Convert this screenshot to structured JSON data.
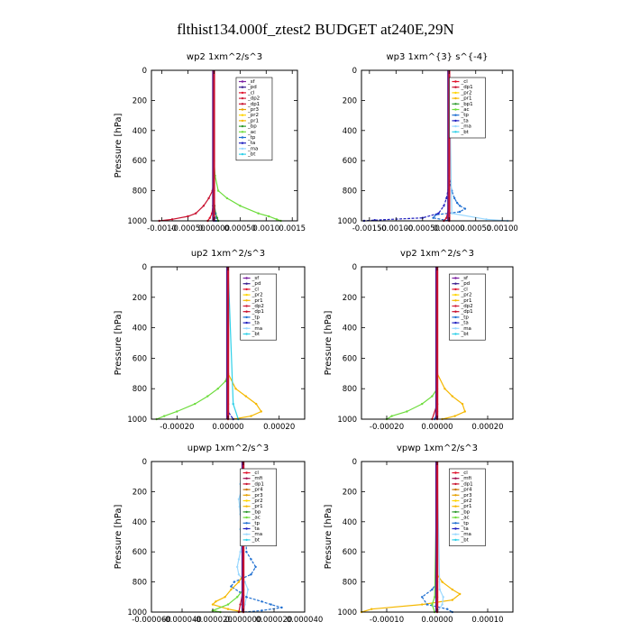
{
  "figure_title": "flthist134.000f_ztest2  BUDGET at240E,29N",
  "colors": {
    "mf": "#000000",
    "sf": "#7a1fa0",
    "pd": "#3a1f8f",
    "cl": "#e0112b",
    "dp1": "#c8102e",
    "dp2": "#d0203a",
    "pr1": "#f5b800",
    "pr2": "#ffd400",
    "pr3": "#e6a000",
    "pr4": "#c87200",
    "bp": "#2e9a2e",
    "ac": "#6ddc3c",
    "tp": "#1f6fd1",
    "ta": "#2020c0",
    "ma": "#9ad8ff",
    "bt": "#30d0e8",
    "mt": "#a01050"
  },
  "chart_data": [
    {
      "type": "line",
      "title": "wp2   1xm^2/s^3",
      "ylabel": "Pressure  [hPa]",
      "xlim": [
        -0.0012,
        0.0016
      ],
      "ylim": [
        1000,
        0
      ],
      "xticks": [
        "-0.0010",
        "-0.00050",
        "0.00000",
        "0.00050",
        "0.0010",
        "0.0015"
      ],
      "xtick_values": [
        -0.001,
        -0.0005,
        0,
        0.0005,
        0.001,
        0.0015
      ],
      "yticks": [
        0,
        200,
        400,
        600,
        800,
        1000
      ],
      "legend": [
        "_sf",
        "_pd",
        "_cl",
        "_dp2",
        "_dp1",
        "_pr3",
        "_pr2",
        "_pr1",
        "_bp",
        "_ac",
        "_tp",
        "_ta",
        "_ma",
        "_bt"
      ],
      "legend_keys": [
        "sf",
        "pd",
        "cl",
        "dp2",
        "dp1",
        "pr3",
        "pr2",
        "pr1",
        "bp",
        "ac",
        "tp",
        "ta",
        "ma",
        "bt"
      ],
      "series": [
        {
          "key": "ac",
          "p": [
            0,
            600,
            700,
            800,
            850,
            900,
            950,
            970,
            990,
            1000
          ],
          "x": [
            0,
            0,
            2e-05,
            8e-05,
            0.00025,
            0.0005,
            0.00085,
            0.00105,
            0.0012,
            0.00128
          ]
        },
        {
          "key": "dp1",
          "p": [
            0,
            700,
            800,
            850,
            900,
            950,
            970,
            990,
            1000
          ],
          "x": [
            0,
            0,
            -3e-05,
            -0.0001,
            -0.0002,
            -0.00035,
            -0.0005,
            -0.0008,
            -0.00105
          ]
        },
        {
          "key": "cl",
          "p": [
            0,
            800,
            900,
            950,
            980,
            1000
          ],
          "x": [
            0,
            0,
            -2e-05,
            -4e-05,
            -8e-05,
            -0.00012
          ]
        },
        {
          "key": "bp",
          "p": [
            0,
            800,
            900,
            950,
            980,
            1000
          ],
          "x": [
            0,
            0,
            1e-05,
            3e-05,
            6e-05,
            8e-05
          ]
        },
        {
          "key": "tp",
          "p": [
            0,
            850,
            950,
            1000
          ],
          "x": [
            0,
            0,
            2e-05,
            4e-05
          ]
        },
        {
          "key": "sf",
          "p": [
            0,
            900,
            1000
          ],
          "x": [
            0,
            0,
            0
          ]
        }
      ]
    },
    {
      "type": "line",
      "title": "wp3   1xm^{3} s^{-4}",
      "ylabel": "",
      "xlim": [
        -0.00165,
        0.0012
      ],
      "ylim": [
        1000,
        0
      ],
      "xticks": [
        "-0.00150",
        "-0.00100",
        "-0.00050",
        "0.00000",
        "0.00050",
        "0.00100"
      ],
      "xtick_values": [
        -0.0015,
        -0.001,
        -0.0005,
        0,
        0.0005,
        0.001
      ],
      "yticks": [
        0,
        200,
        400,
        600,
        800,
        1000
      ],
      "legend": [
        "_cl",
        "_dp1",
        "_pr2",
        "_pr1",
        "_bp1",
        "_ac",
        "_tp",
        "_ta",
        "_ma",
        "_bt"
      ],
      "legend_keys": [
        "cl",
        "dp1",
        "pr2",
        "pr1",
        "bp",
        "ac",
        "tp",
        "ta",
        "ma",
        "bt"
      ],
      "series": [
        {
          "key": "tp",
          "p": [
            0,
            700,
            800,
            850,
            880,
            900,
            920,
            940,
            960,
            980,
            1000
          ],
          "x": [
            0,
            0,
            5e-05,
            0.0001,
            0.00015,
            0.0002,
            0.0003,
            0.0002,
            -0.00025,
            -0.0003,
            0
          ]
        },
        {
          "key": "ta",
          "p": [
            0,
            750,
            850,
            900,
            950,
            980,
            995,
            1000
          ],
          "x": [
            0,
            0,
            -5e-05,
            -0.0001,
            -0.0002,
            -0.0005,
            -0.0014,
            -0.0016
          ]
        },
        {
          "key": "ma",
          "p": [
            0,
            950,
            990,
            1000
          ],
          "x": [
            0,
            5e-05,
            0.0007,
            0.0011
          ]
        },
        {
          "key": "dp1",
          "p": [
            0,
            900,
            980,
            1000
          ],
          "x": [
            0,
            0,
            -5e-05,
            -0.0001
          ]
        },
        {
          "key": "cl",
          "p": [
            0,
            900,
            1000
          ],
          "x": [
            0,
            0,
            0
          ]
        }
      ]
    },
    {
      "type": "line",
      "title": "up2   1xm^2/s^3",
      "ylabel": "Pressure  [hPa]",
      "xlim": [
        -0.0003,
        0.0003
      ],
      "ylim": [
        1000,
        0
      ],
      "xticks": [
        "-0.00020",
        "0.00000",
        "0.00020"
      ],
      "xtick_values": [
        -0.0002,
        0,
        0.0002
      ],
      "yticks": [
        0,
        200,
        400,
        600,
        800,
        1000
      ],
      "legend": [
        "_sf",
        "_pd",
        "_cl",
        "_pr2",
        "_pr1",
        "_dp2",
        "_dp1",
        "_tp",
        "_ta",
        "_ma",
        "_bt"
      ],
      "legend_keys": [
        "sf",
        "pd",
        "cl",
        "pr2",
        "pr1",
        "dp2",
        "dp1",
        "tp",
        "ta",
        "ma",
        "bt"
      ],
      "series": [
        {
          "key": "ac",
          "p": [
            0,
            700,
            750,
            800,
            850,
            900,
            950,
            980,
            1000
          ],
          "x": [
            0,
            0,
            -1e-05,
            -4e-05,
            -8e-05,
            -0.00013,
            -0.0002,
            -0.00025,
            -0.00028
          ]
        },
        {
          "key": "pr1",
          "p": [
            0,
            700,
            800,
            850,
            900,
            950,
            980,
            1000
          ],
          "x": [
            0,
            0,
            3e-05,
            7e-05,
            0.00011,
            0.00013,
            9e-05,
            2e-05
          ]
        },
        {
          "key": "bt",
          "p": [
            0,
            900,
            1000
          ],
          "x": [
            0,
            2e-05,
            4e-05
          ]
        },
        {
          "key": "ta",
          "p": [
            0,
            950,
            1000
          ],
          "x": [
            0,
            0,
            2e-05
          ]
        },
        {
          "key": "cl",
          "p": [
            0,
            900,
            1000
          ],
          "x": [
            0,
            0,
            0
          ]
        }
      ]
    },
    {
      "type": "line",
      "title": "vp2   1xm^2/s^3",
      "ylabel": "Pressure  [hPa]",
      "xlim": [
        -0.0003,
        0.0003
      ],
      "ylim": [
        1000,
        0
      ],
      "xticks": [
        "-0.00020",
        "0.00000",
        "0.00020"
      ],
      "xtick_values": [
        -0.0002,
        0,
        0.0002
      ],
      "yticks": [
        0,
        200,
        400,
        600,
        800,
        1000
      ],
      "legend": [
        "_sf",
        "_pd",
        "_cl",
        "_pr2",
        "_pr1",
        "_dp2",
        "_dp1",
        "_tp",
        "_ta",
        "_ma",
        "_bt"
      ],
      "legend_keys": [
        "sf",
        "pd",
        "cl",
        "pr2",
        "pr1",
        "dp2",
        "dp1",
        "tp",
        "ta",
        "ma",
        "bt"
      ],
      "series": [
        {
          "key": "ac",
          "p": [
            0,
            800,
            850,
            900,
            950,
            980,
            1000
          ],
          "x": [
            0,
            0,
            -2e-05,
            -6e-05,
            -0.00012,
            -0.00018,
            -0.0002
          ]
        },
        {
          "key": "pr1",
          "p": [
            0,
            700,
            800,
            850,
            900,
            950,
            980,
            1000
          ],
          "x": [
            0,
            0,
            3e-05,
            6e-05,
            0.0001,
            0.00011,
            7e-05,
            2e-05
          ]
        },
        {
          "key": "dp1",
          "p": [
            0,
            900,
            1000
          ],
          "x": [
            0,
            0,
            -2e-05
          ]
        },
        {
          "key": "tp",
          "p": [
            0,
            950,
            1000
          ],
          "x": [
            0,
            0,
            -1e-05
          ]
        },
        {
          "key": "cl",
          "p": [
            0,
            900,
            1000
          ],
          "x": [
            0,
            0,
            0
          ]
        }
      ]
    },
    {
      "type": "line",
      "title": "upwp   1xm^2/s^3",
      "ylabel": "Pressure  [hPa]",
      "xlim": [
        -6e-05,
        4e-05
      ],
      "ylim": [
        1000,
        0
      ],
      "xticks": [
        "-0.000060",
        "-0.000040",
        "-0.000020",
        "0.000000",
        "0.000020",
        "0.000040"
      ],
      "xtick_values": [
        -6e-05,
        -4e-05,
        -2e-05,
        0,
        2e-05,
        4e-05
      ],
      "yticks": [
        0,
        200,
        400,
        600,
        800,
        1000
      ],
      "legend": [
        "_cl",
        "_mfi",
        "_dp1",
        "_pr4",
        "_pr3",
        "_pr2",
        "_pr1",
        "_bp",
        "_ac",
        "_tp",
        "_ta",
        "_ma",
        "_bt"
      ],
      "legend_keys": [
        "cl",
        "mt",
        "dp1",
        "pr4",
        "pr3",
        "pr2",
        "pr1",
        "bp",
        "ac",
        "tp",
        "ta",
        "ma",
        "bt"
      ],
      "series": [
        {
          "key": "ma",
          "p": [
            0,
            50,
            100,
            150,
            200,
            250,
            300,
            350,
            400,
            450,
            500,
            550,
            600,
            650,
            700,
            750,
            800,
            850,
            900,
            950,
            1000
          ],
          "x": [
            0,
            -5e-07,
            -1e-06,
            -2e-06,
            -1.5e-06,
            -3e-06,
            -2.5e-06,
            -2e-06,
            -1e-06,
            -2e-06,
            -1.5e-06,
            -1e-06,
            -2e-06,
            -3e-06,
            -4e-06,
            -3e-06,
            1e-06,
            3e-06,
            2e-06,
            1e-06,
            0
          ]
        },
        {
          "key": "tp",
          "p": [
            0,
            600,
            650,
            700,
            750,
            800,
            830,
            870,
            900,
            930,
            950,
            970,
            990,
            1000
          ],
          "x": [
            0,
            2e-06,
            5e-06,
            8e-06,
            5e-06,
            -6e-06,
            -8e-06,
            -2e-06,
            2e-06,
            1.2e-05,
            1.8e-05,
            2.5e-05,
            1.2e-05,
            0
          ]
        },
        {
          "key": "pr1",
          "p": [
            0,
            750,
            800,
            850,
            900,
            930,
            950,
            980,
            1000
          ],
          "x": [
            0,
            0,
            -3e-06,
            -8e-06,
            -1.2e-05,
            -1.8e-05,
            -2e-05,
            -1e-05,
            0
          ]
        },
        {
          "key": "ac",
          "p": [
            0,
            850,
            900,
            950,
            990,
            1000
          ],
          "x": [
            0,
            0,
            -4e-06,
            -1e-05,
            -2e-05,
            -1.5e-05
          ]
        },
        {
          "key": "dp1",
          "p": [
            0,
            850,
            950,
            1000
          ],
          "x": [
            0,
            0,
            -2e-06,
            -3e-06
          ]
        },
        {
          "key": "cl",
          "p": [
            0,
            900,
            1000
          ],
          "x": [
            0,
            0,
            0
          ]
        }
      ]
    },
    {
      "type": "line",
      "title": "vpwp   1xm^2/s^3",
      "ylabel": "Pressure  [hPa]",
      "xlim": [
        -0.00015,
        0.00015
      ],
      "ylim": [
        1000,
        0
      ],
      "xticks": [
        "-0.00010",
        "0.00000",
        "0.00010"
      ],
      "xtick_values": [
        -0.0001,
        0,
        0.0001
      ],
      "yticks": [
        0,
        200,
        400,
        600,
        800,
        1000
      ],
      "legend": [
        "_cl",
        "_mfi",
        "_dp1",
        "_pr4",
        "_pr3",
        "_pr2",
        "_pr1",
        "_bp",
        "_ac",
        "_tp",
        "_ta",
        "_ma",
        "_bt"
      ],
      "legend_keys": [
        "cl",
        "mt",
        "dp1",
        "pr4",
        "pr3",
        "pr2",
        "pr1",
        "bp",
        "ac",
        "tp",
        "ta",
        "ma",
        "bt"
      ],
      "series": [
        {
          "key": "pr1",
          "p": [
            0,
            750,
            800,
            850,
            880,
            920,
            950,
            980,
            1000
          ],
          "x": [
            0,
            0,
            1e-05,
            3e-05,
            4.5e-05,
            3e-05,
            -3e-05,
            -0.00013,
            -0.00015
          ]
        },
        {
          "key": "tp",
          "p": [
            0,
            800,
            850,
            900,
            950,
            980,
            1000
          ],
          "x": [
            0,
            0,
            -1e-05,
            -3e-05,
            -2e-05,
            2e-05,
            3e-05
          ]
        },
        {
          "key": "ma",
          "p": [
            0,
            850,
            900,
            950,
            1000
          ],
          "x": [
            0,
            5e-06,
            1.2e-05,
            1e-05,
            0
          ]
        },
        {
          "key": "ac",
          "p": [
            0,
            900,
            950,
            1000
          ],
          "x": [
            0,
            -5e-06,
            -1e-05,
            -5e-06
          ]
        },
        {
          "key": "cl",
          "p": [
            0,
            900,
            1000
          ],
          "x": [
            0,
            0,
            0
          ]
        }
      ]
    }
  ]
}
